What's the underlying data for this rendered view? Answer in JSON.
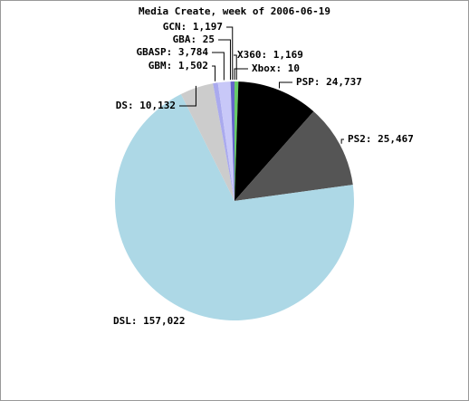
{
  "chart_data": {
    "type": "pie",
    "title": "Media Create, week of 2006-06-19",
    "categories": [
      "Xbox",
      "X360",
      "PSP",
      "PS2",
      "DSL",
      "DS",
      "GBM",
      "GBASP",
      "GBA",
      "GCN"
    ],
    "values": [
      10,
      1169,
      24737,
      25467,
      157022,
      10132,
      1502,
      3784,
      25,
      1197
    ],
    "value_labels": [
      "Xbox: 10",
      "X360: 1,169",
      "PSP: 24,737",
      "PS2: 25,467",
      "DSL: 157,022",
      "DS: 10,132",
      "GBM: 1,502",
      "GBASP: 3,784",
      "GBA: 25",
      "GCN: 1,197"
    ],
    "colors": [
      "#f0f0f0",
      "#66cc66",
      "#000000",
      "#555555",
      "#add8e6",
      "#cccccc",
      "#aaaaee",
      "#c8c8f8",
      "#e4e4ff",
      "#6666cc"
    ]
  }
}
